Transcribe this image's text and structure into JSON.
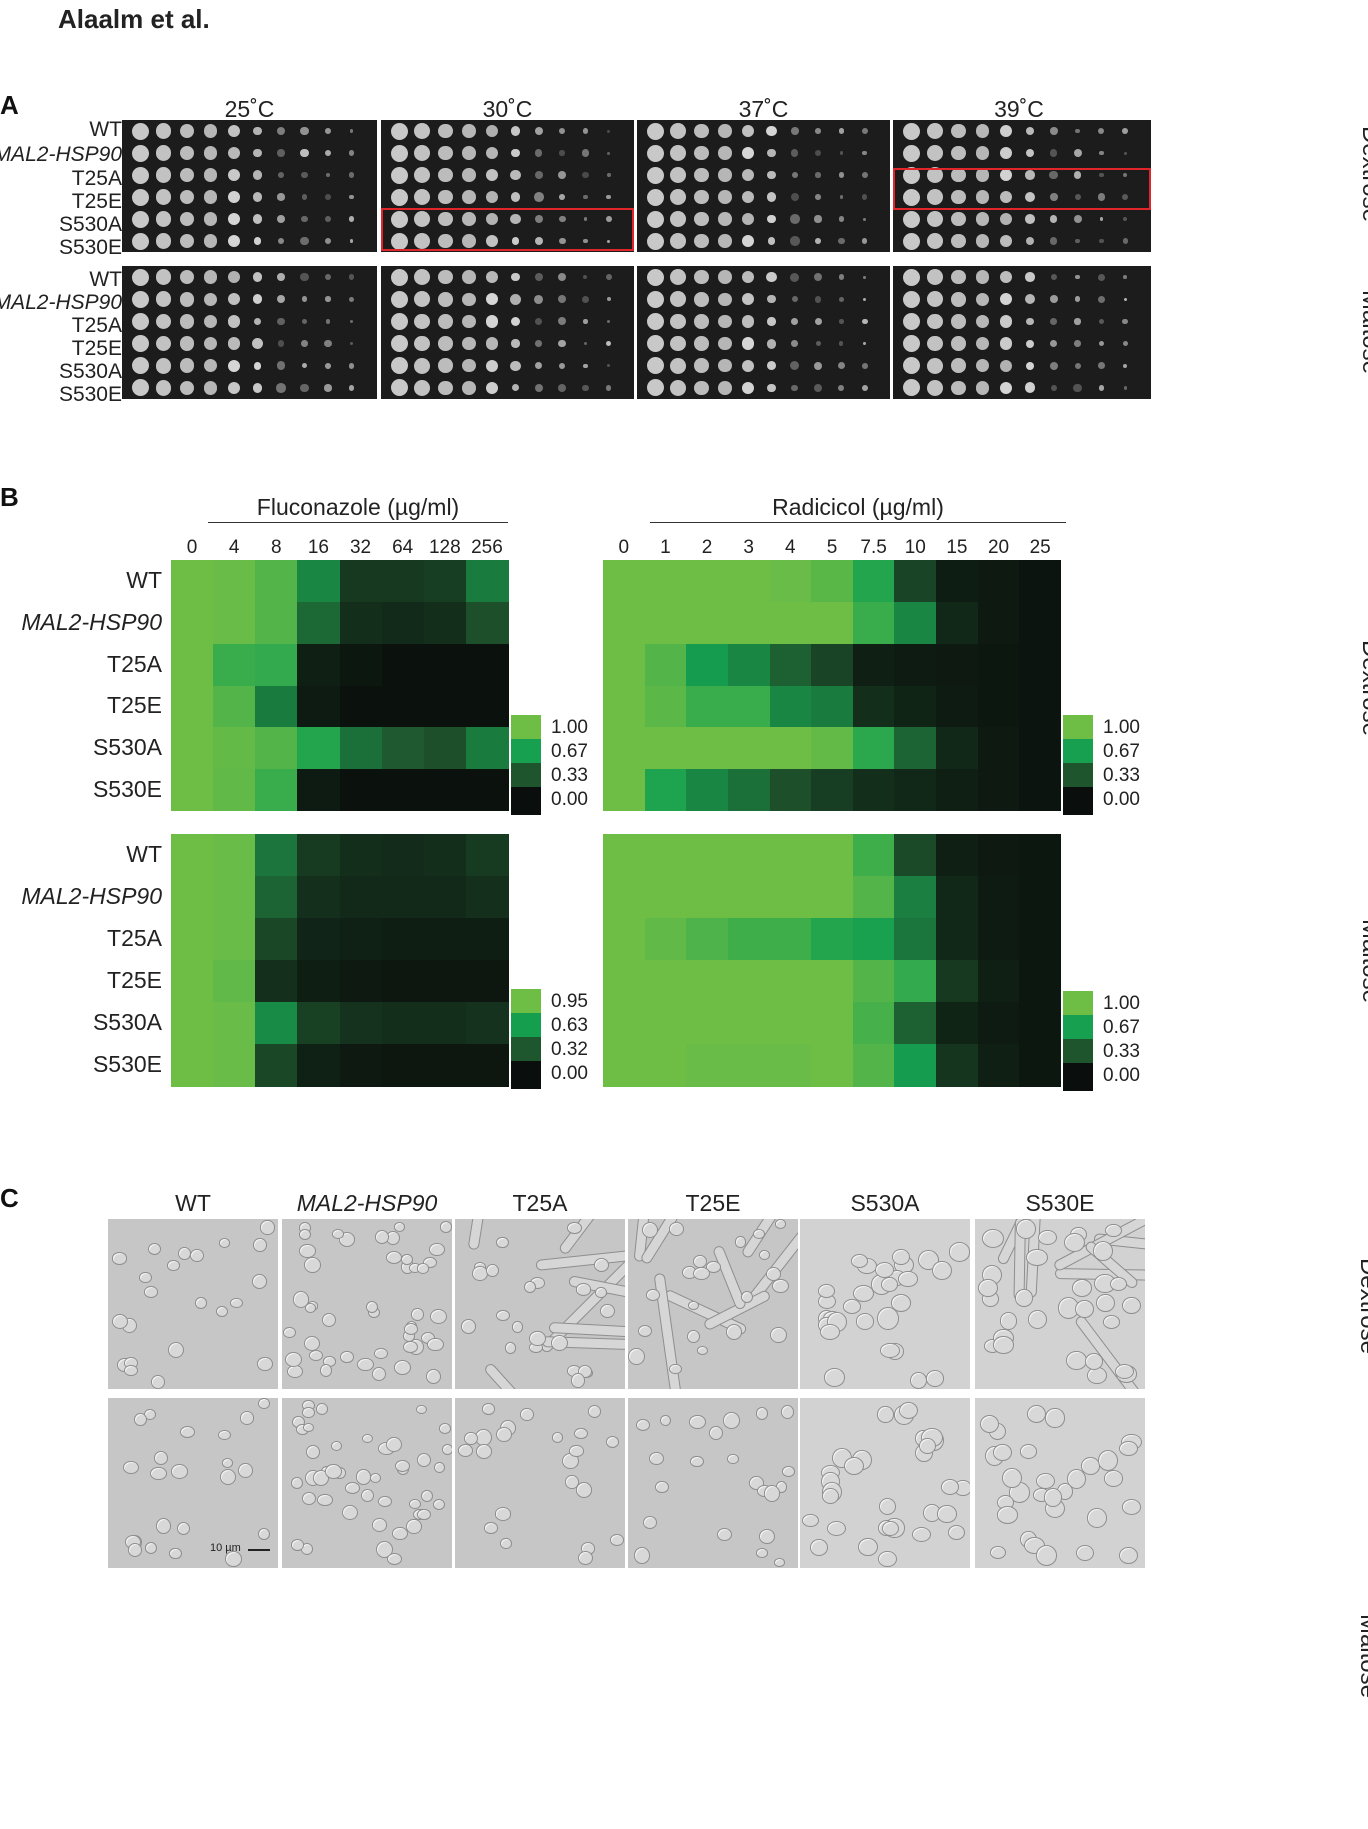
{
  "header": {
    "authors": "Alaalm et al."
  },
  "panelA": {
    "letter": "A",
    "temperatures": [
      "25˚C",
      "30˚C",
      "37˚C",
      "39˚C"
    ],
    "strains": [
      "WT",
      "MAL2-HSP90",
      "T25A",
      "T25E",
      "S530A",
      "S530E"
    ],
    "media": [
      "Dextrose",
      "Maltose"
    ]
  },
  "panelB": {
    "letter": "B",
    "media": [
      "Dextrose",
      "Maltose"
    ],
    "strains": [
      "WT",
      "MAL2-HSP90",
      "T25A",
      "T25E",
      "S530A",
      "S530E"
    ]
  },
  "panelC": {
    "letter": "C",
    "strains": [
      "WT",
      "MAL2-HSP90",
      "T25A",
      "T25E",
      "S530A",
      "S530E"
    ],
    "media": [
      "Dextrose",
      "Maltose"
    ],
    "scale_bar": "10 µm"
  },
  "chart_data": [
    {
      "type": "heatmap",
      "title": "Fluconazole (µg/ml)",
      "condition": "Dextrose",
      "x": [
        "0",
        "4",
        "8",
        "16",
        "32",
        "64",
        "128",
        "256"
      ],
      "y": [
        "WT",
        "MAL2-HSP90",
        "T25A",
        "T25E",
        "S530A",
        "S530E"
      ],
      "values": [
        [
          1.0,
          0.98,
          0.9,
          0.55,
          0.2,
          0.2,
          0.22,
          0.5
        ],
        [
          1.0,
          0.98,
          0.9,
          0.42,
          0.15,
          0.13,
          0.15,
          0.3
        ],
        [
          1.0,
          0.8,
          0.78,
          0.08,
          0.04,
          0.02,
          0.02,
          0.02
        ],
        [
          1.0,
          0.9,
          0.5,
          0.06,
          0.02,
          0.02,
          0.02,
          0.02
        ],
        [
          1.0,
          0.96,
          0.9,
          0.72,
          0.45,
          0.35,
          0.3,
          0.5
        ],
        [
          1.0,
          0.95,
          0.8,
          0.06,
          0.02,
          0.02,
          0.02,
          0.02
        ]
      ],
      "legend": [
        "1.00",
        "0.67",
        "0.33",
        "0.00"
      ]
    },
    {
      "type": "heatmap",
      "title": "Radicicol (µg/ml)",
      "condition": "Dextrose",
      "x": [
        "0",
        "1",
        "2",
        "3",
        "4",
        "5",
        "7.5",
        "10",
        "15",
        "20",
        "25"
      ],
      "y": [
        "WT",
        "MAL2-HSP90",
        "T25A",
        "T25E",
        "S530A",
        "S530E"
      ],
      "values": [
        [
          1.0,
          1.0,
          1.0,
          1.0,
          0.98,
          0.92,
          0.72,
          0.25,
          0.07,
          0.05,
          0.03
        ],
        [
          1.0,
          1.0,
          1.0,
          1.0,
          1.0,
          1.0,
          0.8,
          0.55,
          0.12,
          0.05,
          0.03
        ],
        [
          1.0,
          0.9,
          0.65,
          0.55,
          0.38,
          0.25,
          0.08,
          0.06,
          0.05,
          0.04,
          0.03
        ],
        [
          1.0,
          0.93,
          0.8,
          0.8,
          0.55,
          0.5,
          0.15,
          0.1,
          0.06,
          0.04,
          0.03
        ],
        [
          1.0,
          1.0,
          1.0,
          1.0,
          1.0,
          0.96,
          0.75,
          0.4,
          0.12,
          0.05,
          0.03
        ],
        [
          1.0,
          0.7,
          0.55,
          0.45,
          0.3,
          0.22,
          0.15,
          0.12,
          0.08,
          0.05,
          0.03
        ]
      ],
      "legend": [
        "1.00",
        "0.67",
        "0.33",
        "0.00"
      ]
    },
    {
      "type": "heatmap",
      "title": "Fluconazole (µg/ml)",
      "condition": "Maltose",
      "x": [
        "0",
        "4",
        "8",
        "16",
        "32",
        "64",
        "128",
        "256"
      ],
      "y": [
        "WT",
        "MAL2-HSP90",
        "T25A",
        "T25E",
        "S530A",
        "S530E"
      ],
      "values": [
        [
          0.95,
          0.93,
          0.45,
          0.2,
          0.14,
          0.13,
          0.14,
          0.2
        ],
        [
          0.95,
          0.93,
          0.38,
          0.15,
          0.12,
          0.12,
          0.12,
          0.15
        ],
        [
          0.95,
          0.93,
          0.25,
          0.1,
          0.08,
          0.07,
          0.07,
          0.07
        ],
        [
          0.95,
          0.9,
          0.15,
          0.07,
          0.05,
          0.04,
          0.04,
          0.04
        ],
        [
          0.95,
          0.93,
          0.55,
          0.22,
          0.16,
          0.14,
          0.14,
          0.16
        ],
        [
          0.95,
          0.93,
          0.25,
          0.08,
          0.05,
          0.04,
          0.04,
          0.04
        ]
      ],
      "legend": [
        "0.95",
        "0.63",
        "0.32",
        "0.00"
      ]
    },
    {
      "type": "heatmap",
      "title": "Radicicol (µg/ml)",
      "condition": "Maltose",
      "x": [
        "0",
        "1",
        "2",
        "3",
        "4",
        "5",
        "7.5",
        "10",
        "15",
        "20",
        "25"
      ],
      "y": [
        "WT",
        "MAL2-HSP90",
        "T25A",
        "T25E",
        "S530A",
        "S530E"
      ],
      "values": [
        [
          1.0,
          1.0,
          1.0,
          1.0,
          1.0,
          1.0,
          0.82,
          0.28,
          0.08,
          0.05,
          0.04
        ],
        [
          1.0,
          1.0,
          1.0,
          1.0,
          1.0,
          1.0,
          0.9,
          0.52,
          0.12,
          0.06,
          0.04
        ],
        [
          1.0,
          0.95,
          0.88,
          0.82,
          0.82,
          0.72,
          0.68,
          0.48,
          0.12,
          0.06,
          0.04
        ],
        [
          1.0,
          1.0,
          1.0,
          1.0,
          1.0,
          1.0,
          0.9,
          0.78,
          0.2,
          0.08,
          0.04
        ],
        [
          1.0,
          1.0,
          1.0,
          1.0,
          1.0,
          1.0,
          0.85,
          0.38,
          0.1,
          0.06,
          0.04
        ],
        [
          1.0,
          1.0,
          0.98,
          0.98,
          0.98,
          1.0,
          0.9,
          0.65,
          0.18,
          0.08,
          0.04
        ]
      ],
      "legend": [
        "1.00",
        "0.67",
        "0.33",
        "0.00"
      ]
    }
  ]
}
